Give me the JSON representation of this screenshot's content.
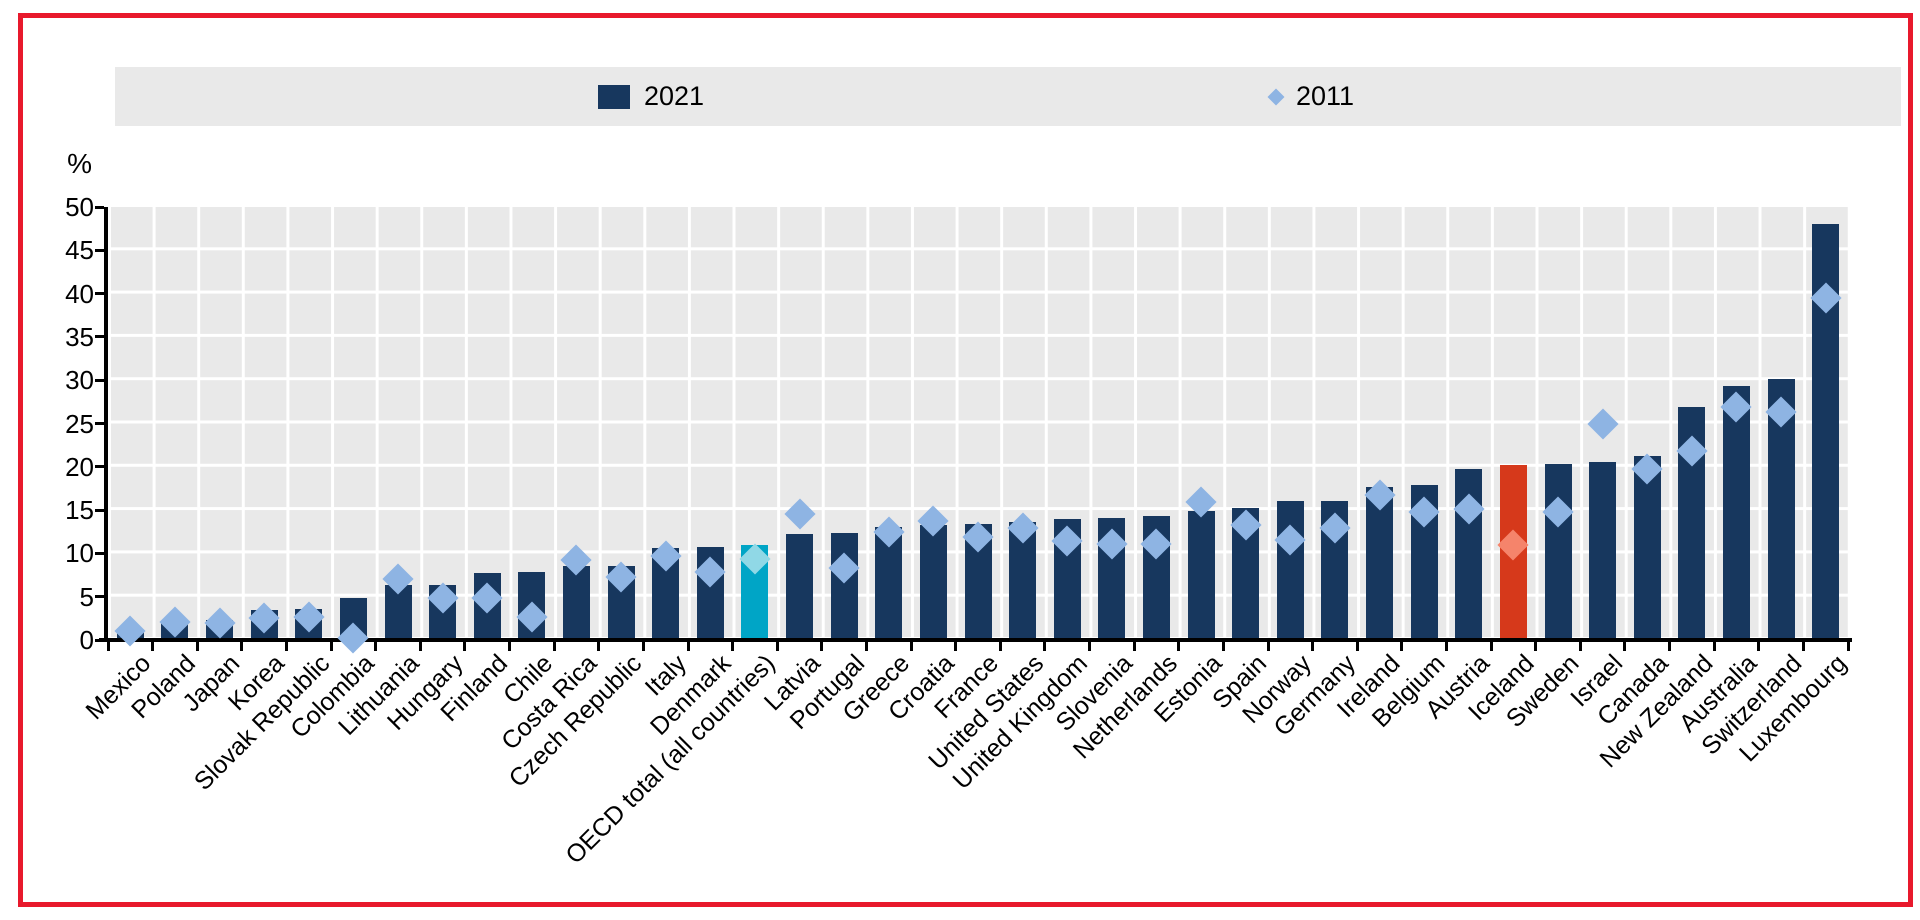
{
  "frame": {
    "border_color": "#e8192c"
  },
  "legend": {
    "items": [
      {
        "label": "2021",
        "marker": "square",
        "color": "#17375e"
      },
      {
        "label": "2011",
        "marker": "diamond",
        "color": "#8eb4e3"
      }
    ]
  },
  "y_axis": {
    "unit_label": "%",
    "min": 0,
    "max": 50,
    "step": 5,
    "ticks": [
      50,
      45,
      40,
      35,
      30,
      25,
      20,
      15,
      10,
      5,
      0
    ]
  },
  "style": {
    "bar_default": "#17375e",
    "bar_oecd": "#00a5c6",
    "bar_iceland": "#d6391b",
    "diamond_default": "#8eb4e3",
    "diamond_oecd": "#90d8e6",
    "diamond_iceland": "#f5846b",
    "plot_background": "#e9e9e9",
    "gridline": "#ffffff",
    "legend_background": "#e9e9e9",
    "axis": "#000000"
  },
  "chart_data": {
    "type": "bar",
    "ylabel": "%",
    "ylim": [
      0,
      50
    ],
    "grid": true,
    "legend_position": "top",
    "categories": [
      "Mexico",
      "Poland",
      "Japan",
      "Korea",
      "Slovak Republic",
      "Colombia",
      "Lithuania",
      "Hungary",
      "Finland",
      "Chile",
      "Costa Rica",
      "Czech Republic",
      "Italy",
      "Denmark",
      "OECD total (all countries)",
      "Latvia",
      "Portugal",
      "Greece",
      "Croatia",
      "France",
      "United States",
      "United Kingdom",
      "Slovenia",
      "Netherlands",
      "Estonia",
      "Spain",
      "Norway",
      "Germany",
      "Ireland",
      "Belgium",
      "Austria",
      "Iceland",
      "Sweden",
      "Israel",
      "Canada",
      "New Zealand",
      "Australia",
      "Switzerland",
      "Luxembourg"
    ],
    "series": [
      {
        "name": "2021",
        "type": "bar",
        "default_color": "#17375e",
        "special_colors": {
          "14": "#00a5c6",
          "31": "#d6391b"
        },
        "values": [
          1.0,
          2.2,
          2.3,
          3.5,
          3.6,
          4.9,
          6.3,
          6.4,
          7.7,
          7.9,
          8.5,
          8.6,
          10.6,
          10.7,
          11.0,
          12.2,
          12.4,
          13.1,
          13.3,
          13.4,
          13.6,
          14.0,
          14.1,
          14.3,
          14.9,
          15.3,
          16.0,
          16.1,
          17.7,
          17.9,
          19.8,
          20.2,
          20.3,
          20.6,
          21.3,
          26.9,
          29.3,
          30.1,
          48.0
        ]
      },
      {
        "name": "2011",
        "type": "scatter",
        "marker": "diamond",
        "default_color": "#8eb4e3",
        "special_colors": {
          "14": "#90d8e6",
          "31": "#f5846b"
        },
        "values": [
          1.0,
          2.1,
          2.0,
          2.5,
          2.7,
          0.2,
          7.0,
          4.8,
          4.9,
          2.6,
          9.2,
          7.3,
          9.7,
          7.8,
          9.4,
          14.6,
          8.3,
          12.5,
          13.7,
          11.9,
          12.9,
          11.4,
          11.1,
          11.1,
          15.9,
          13.3,
          11.5,
          12.9,
          16.7,
          14.8,
          15.1,
          11.0,
          14.8,
          25.0,
          19.7,
          21.8,
          26.9,
          26.3,
          39.5
        ]
      }
    ],
    "highlighted_categories": [
      "OECD total (all countries)",
      "Iceland"
    ]
  }
}
